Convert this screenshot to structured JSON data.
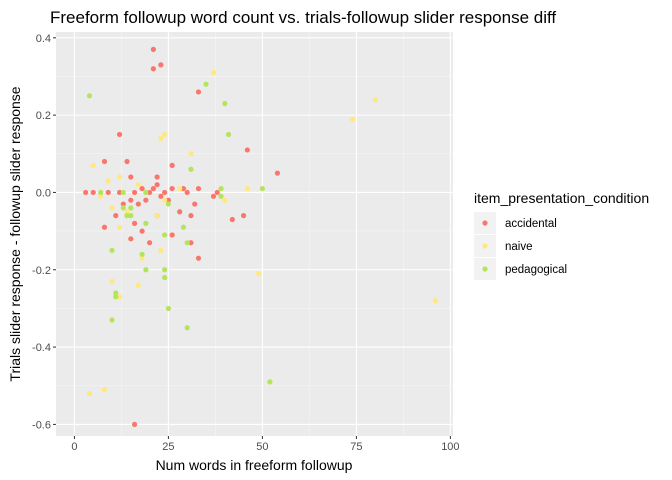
{
  "chart_data": {
    "type": "scatter",
    "title": "Freeform followup word count vs. trials-followup slider response diff",
    "xlabel": "Num words in freeform followup",
    "ylabel": "Trials slider response - followup slider response",
    "xlim": [
      0,
      100
    ],
    "ylim": [
      -0.6,
      0.4
    ],
    "x_ticks": [
      0,
      25,
      50,
      75,
      100
    ],
    "y_ticks": [
      -0.6,
      -0.4,
      -0.2,
      0.0,
      0.2,
      0.4
    ],
    "x_tick_labels": [
      "0",
      "25",
      "50",
      "75",
      "100"
    ],
    "y_tick_labels": [
      "-0.6",
      "-0.4",
      "-0.2",
      "0.0",
      "0.2",
      "0.4"
    ],
    "grid": true,
    "legend": {
      "title": "item_presentation_condition",
      "placement": "right"
    },
    "series": [
      {
        "name": "accidental",
        "color": "#F8766D",
        "points": [
          [
            21,
            0.37
          ],
          [
            21,
            0.32
          ],
          [
            23,
            0.33
          ],
          [
            33,
            0.26
          ],
          [
            12,
            0.15
          ],
          [
            46,
            0.11
          ],
          [
            14,
            0.08
          ],
          [
            8,
            0.08
          ],
          [
            26,
            0.07
          ],
          [
            54,
            0.05
          ],
          [
            15,
            0.04
          ],
          [
            22,
            0.04
          ],
          [
            3,
            0.0
          ],
          [
            5,
            0.0
          ],
          [
            9,
            0.0
          ],
          [
            12,
            0.0
          ],
          [
            16,
            0.0
          ],
          [
            18,
            0.01
          ],
          [
            20,
            0.0
          ],
          [
            22,
            0.02
          ],
          [
            24,
            0.0
          ],
          [
            26,
            0.01
          ],
          [
            29,
            0.01
          ],
          [
            30,
            0.0
          ],
          [
            33,
            0.01
          ],
          [
            37,
            -0.01
          ],
          [
            38,
            0.0
          ],
          [
            21,
            0.01
          ],
          [
            23,
            -0.01
          ],
          [
            25,
            -0.02
          ],
          [
            19,
            -0.02
          ],
          [
            15,
            -0.02
          ],
          [
            17,
            -0.03
          ],
          [
            13,
            -0.03
          ],
          [
            11,
            -0.06
          ],
          [
            31,
            -0.06
          ],
          [
            32,
            -0.03
          ],
          [
            28,
            -0.05
          ],
          [
            22,
            -0.06
          ],
          [
            16,
            -0.08
          ],
          [
            18,
            -0.1
          ],
          [
            42,
            -0.07
          ],
          [
            45,
            -0.06
          ],
          [
            8,
            -0.09
          ],
          [
            15,
            -0.12
          ],
          [
            20,
            -0.13
          ],
          [
            26,
            -0.11
          ],
          [
            31,
            -0.13
          ],
          [
            33,
            -0.17
          ],
          [
            16,
            -0.6
          ]
        ]
      },
      {
        "name": "naive",
        "color": "#FFE97E",
        "points": [
          [
            37,
            0.31
          ],
          [
            80,
            0.24
          ],
          [
            74,
            0.19
          ],
          [
            24,
            0.15
          ],
          [
            23,
            0.14
          ],
          [
            31,
            0.1
          ],
          [
            5,
            0.07
          ],
          [
            9,
            0.03
          ],
          [
            12,
            0.04
          ],
          [
            17,
            0.02
          ],
          [
            28,
            0.01
          ],
          [
            46,
            0.01
          ],
          [
            7,
            -0.01
          ],
          [
            10,
            -0.04
          ],
          [
            14,
            -0.05
          ],
          [
            12,
            -0.09
          ],
          [
            22,
            -0.06
          ],
          [
            24,
            -0.02
          ],
          [
            40,
            -0.02
          ],
          [
            23,
            -0.15
          ],
          [
            18,
            -0.17
          ],
          [
            10,
            -0.23
          ],
          [
            17,
            -0.24
          ],
          [
            49,
            -0.21
          ],
          [
            12,
            -0.27
          ],
          [
            96,
            -0.28
          ],
          [
            8,
            -0.51
          ],
          [
            4,
            -0.52
          ]
        ]
      },
      {
        "name": "pedagogical",
        "color": "#B3E55A",
        "points": [
          [
            35,
            0.28
          ],
          [
            4,
            0.25
          ],
          [
            40,
            0.23
          ],
          [
            41,
            0.15
          ],
          [
            31,
            0.06
          ],
          [
            39,
            0.01
          ],
          [
            50,
            0.01
          ],
          [
            7,
            0.0
          ],
          [
            13,
            0.0
          ],
          [
            19,
            0.0
          ],
          [
            39,
            -0.01
          ],
          [
            25,
            -0.03
          ],
          [
            15,
            -0.04
          ],
          [
            15,
            -0.06
          ],
          [
            14,
            -0.06
          ],
          [
            13,
            -0.04
          ],
          [
            19,
            -0.08
          ],
          [
            29,
            -0.09
          ],
          [
            24,
            -0.11
          ],
          [
            30,
            -0.13
          ],
          [
            10,
            -0.15
          ],
          [
            18,
            -0.16
          ],
          [
            19,
            -0.2
          ],
          [
            24,
            -0.2
          ],
          [
            24,
            -0.22
          ],
          [
            11,
            -0.26
          ],
          [
            11,
            -0.27
          ],
          [
            25,
            -0.3
          ],
          [
            10,
            -0.33
          ],
          [
            30,
            -0.35
          ],
          [
            52,
            -0.49
          ]
        ]
      }
    ]
  }
}
